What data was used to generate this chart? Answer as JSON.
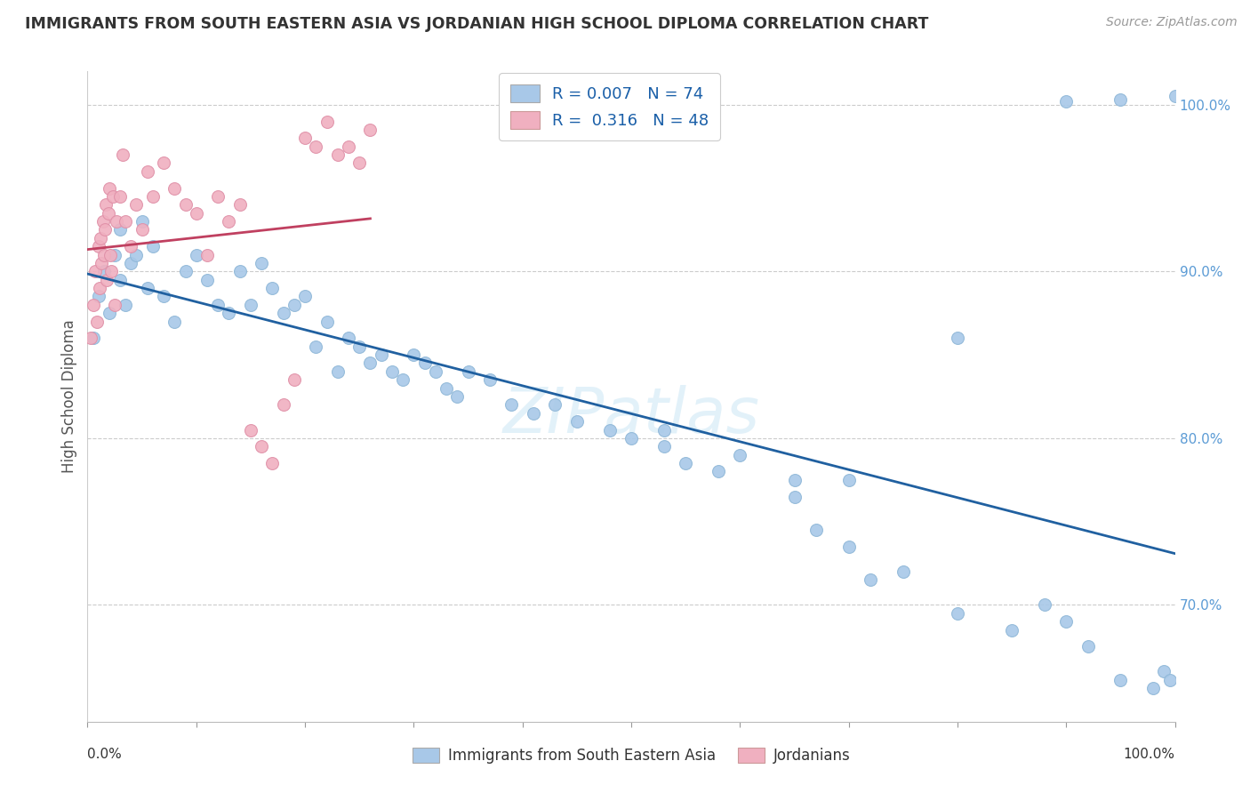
{
  "title": "IMMIGRANTS FROM SOUTH EASTERN ASIA VS JORDANIAN HIGH SCHOOL DIPLOMA CORRELATION CHART",
  "source": "Source: ZipAtlas.com",
  "ylabel": "High School Diploma",
  "watermark": "ZIPatlas",
  "legend_blue_r": "R = 0.007",
  "legend_blue_n": "N = 74",
  "legend_pink_r": "R =  0.316",
  "legend_pink_n": "N = 48",
  "blue_color": "#a8c8e8",
  "pink_color": "#f0b0c0",
  "trendline_blue": "#2060a0",
  "trendline_pink": "#c04060",
  "blue_legend_label": "Immigrants from South Eastern Asia",
  "pink_legend_label": "Jordanians",
  "xlim": [
    0.0,
    100.0
  ],
  "ylim": [
    63.0,
    102.0
  ],
  "right_yticks": [
    70,
    80,
    90,
    100
  ],
  "right_yticklabels": [
    "70.0%",
    "80.0%",
    "90.0%",
    "100.0%"
  ],
  "blue_scatter_x": [
    0.5,
    1.0,
    1.5,
    2.0,
    2.5,
    3.0,
    3.0,
    3.5,
    4.0,
    4.5,
    5.0,
    5.5,
    6.0,
    7.0,
    8.0,
    9.0,
    10.0,
    11.0,
    12.0,
    13.0,
    14.0,
    15.0,
    16.0,
    17.0,
    18.0,
    19.0,
    20.0,
    21.0,
    22.0,
    23.0,
    24.0,
    25.0,
    26.0,
    27.0,
    28.0,
    29.0,
    30.0,
    31.0,
    32.0,
    33.0,
    34.0,
    35.0,
    37.0,
    39.0,
    41.0,
    43.0,
    45.0,
    48.0,
    50.0,
    53.0,
    55.0,
    58.0,
    60.0,
    65.0,
    67.0,
    70.0,
    72.0,
    75.0,
    80.0,
    85.0,
    88.0,
    90.0,
    92.0,
    95.0,
    98.0,
    99.0,
    99.5,
    100.0,
    53.0,
    65.0,
    70.0,
    80.0,
    90.0,
    95.0
  ],
  "blue_scatter_y": [
    86.0,
    88.5,
    90.0,
    87.5,
    91.0,
    89.5,
    92.5,
    88.0,
    90.5,
    91.0,
    93.0,
    89.0,
    91.5,
    88.5,
    87.0,
    90.0,
    91.0,
    89.5,
    88.0,
    87.5,
    90.0,
    88.0,
    90.5,
    89.0,
    87.5,
    88.0,
    88.5,
    85.5,
    87.0,
    84.0,
    86.0,
    85.5,
    84.5,
    85.0,
    84.0,
    83.5,
    85.0,
    84.5,
    84.0,
    83.0,
    82.5,
    84.0,
    83.5,
    82.0,
    81.5,
    82.0,
    81.0,
    80.5,
    80.0,
    79.5,
    78.5,
    78.0,
    79.0,
    77.5,
    74.5,
    73.5,
    71.5,
    72.0,
    69.5,
    68.5,
    70.0,
    69.0,
    67.5,
    65.5,
    65.0,
    66.0,
    65.5,
    100.5,
    80.5,
    76.5,
    77.5,
    86.0,
    100.2,
    100.3
  ],
  "pink_scatter_x": [
    0.3,
    0.5,
    0.7,
    0.9,
    1.0,
    1.1,
    1.2,
    1.3,
    1.4,
    1.5,
    1.6,
    1.7,
    1.8,
    1.9,
    2.0,
    2.1,
    2.2,
    2.3,
    2.5,
    2.7,
    3.0,
    3.2,
    3.5,
    4.0,
    4.5,
    5.0,
    5.5,
    6.0,
    7.0,
    8.0,
    9.0,
    10.0,
    11.0,
    12.0,
    13.0,
    14.0,
    15.0,
    16.0,
    17.0,
    18.0,
    19.0,
    20.0,
    21.0,
    22.0,
    23.0,
    24.0,
    25.0,
    26.0
  ],
  "pink_scatter_y": [
    86.0,
    88.0,
    90.0,
    87.0,
    91.5,
    89.0,
    92.0,
    90.5,
    93.0,
    91.0,
    92.5,
    94.0,
    89.5,
    93.5,
    95.0,
    91.0,
    90.0,
    94.5,
    88.0,
    93.0,
    94.5,
    97.0,
    93.0,
    91.5,
    94.0,
    92.5,
    96.0,
    94.5,
    96.5,
    95.0,
    94.0,
    93.5,
    91.0,
    94.5,
    93.0,
    94.0,
    80.5,
    79.5,
    78.5,
    82.0,
    83.5,
    98.0,
    97.5,
    99.0,
    97.0,
    97.5,
    96.5,
    98.5
  ]
}
